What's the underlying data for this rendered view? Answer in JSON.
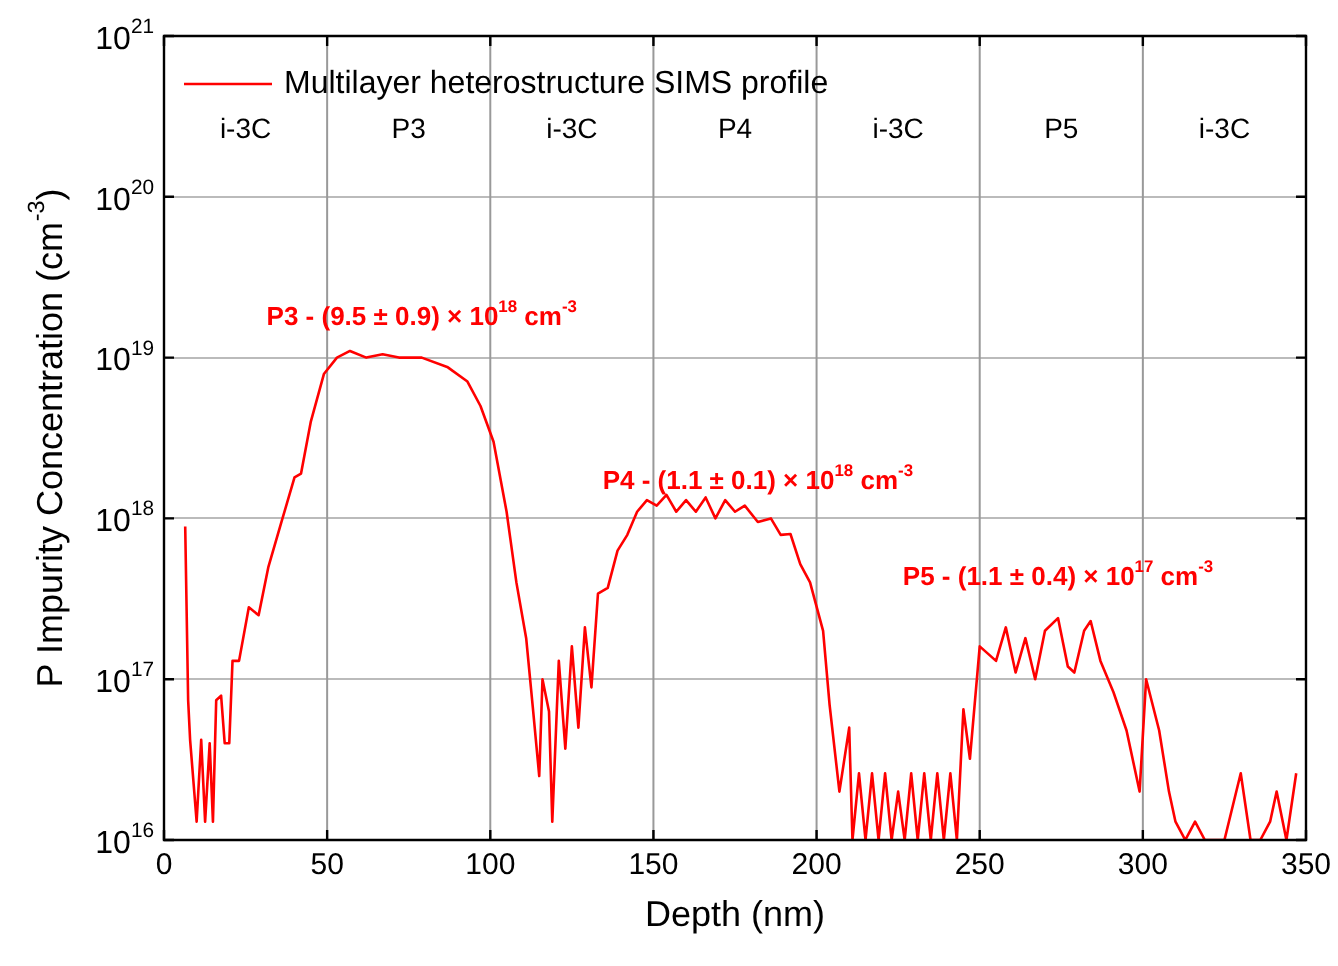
{
  "chart_data": {
    "type": "line",
    "xlabel": "Depth (nm)",
    "ylabel": "P Impurity Concentration (cm$^{-3}$)",
    "log": "y",
    "grid": "y",
    "legend": "top left",
    "marker": "none",
    "line_style": "solid",
    "xlim": [
      0,
      350
    ],
    "xticks": [
      0,
      50,
      100,
      150,
      200,
      250,
      300,
      350
    ],
    "ylim": [
      1e+16,
      1e+21
    ],
    "yticks": [
      {
        "value": 1e+16,
        "label": "10$^{16}$"
      },
      {
        "value": 1e+17,
        "label": "10$^{17}$"
      },
      {
        "value": 1e+18,
        "label": "10$^{18}$"
      },
      {
        "value": 1e+19,
        "label": "10$^{19}$"
      },
      {
        "value": 1e+20,
        "label": "10$^{20}$"
      },
      {
        "value": 1e+21,
        "label": "10$^{21}$"
      }
    ],
    "ref_lines": [
      {
        "axis": "x",
        "value": 50,
        "color": "#999999"
      },
      {
        "axis": "x",
        "value": 100,
        "color": "#999999"
      },
      {
        "axis": "x",
        "value": 150,
        "color": "#999999"
      },
      {
        "axis": "x",
        "value": 200,
        "color": "#999999"
      },
      {
        "axis": "x",
        "value": 250,
        "color": "#999999"
      },
      {
        "axis": "x",
        "value": 300,
        "color": "#999999"
      }
    ],
    "annotations": [
      "i-3C",
      "P3",
      "i-3C",
      "P4",
      "i-3C",
      "P5",
      "i-3C",
      {
        "text": "P3 - (9.5 ± 0.9) × 10$^{18}$ cm$^{-3}$",
        "x": 79,
        "y": 1e+19
      },
      {
        "text": "P4 - (1.1 ± 0.1) × 10$^{18}$ cm$^{-3}$",
        "x": 182,
        "y": 9.5e+17
      },
      {
        "text": "P5 - (1.1 ± 0.4) × 10$^{17}$ cm$^{-3}$",
        "x": 274,
        "y": 2.4e+17
      }
    ],
    "series": [
      {
        "name": "Multilayer heterostructure SIMS profile",
        "color": "#ff0000",
        "x": [
          6.5,
          7.4,
          8,
          10,
          11.4,
          12.6,
          14,
          15,
          16,
          17.5,
          18.6,
          20,
          21,
          23,
          26,
          29,
          32,
          36,
          40,
          42,
          45,
          49,
          53,
          57,
          62,
          67,
          72,
          79,
          87,
          93,
          97,
          101,
          105,
          108,
          111,
          113,
          115,
          116,
          118,
          119,
          121,
          123,
          125,
          127,
          129,
          131,
          133,
          136,
          139,
          142,
          145,
          148,
          151,
          154,
          157,
          160,
          163,
          166,
          169,
          172,
          175,
          178,
          182,
          186,
          189,
          192,
          195,
          198,
          202,
          204,
          207,
          210,
          211,
          213,
          215,
          217,
          219,
          221,
          223,
          225,
          227,
          229,
          231,
          233,
          235,
          237,
          239,
          241,
          243,
          245,
          247,
          250,
          255,
          258,
          261,
          264,
          267,
          270,
          274,
          277,
          279,
          282,
          284,
          287,
          291,
          295,
          299,
          301,
          305,
          308,
          310,
          313,
          316,
          319,
          322,
          325,
          330,
          333,
          336,
          339,
          341,
          344,
          347
        ],
        "values": [
          8.9e+17,
          7.4e+16,
          4.2e+16,
          1.3e+16,
          4.2e+16,
          1.3e+16,
          4e+16,
          1.3e+16,
          7.4e+16,
          7.9e+16,
          4e+16,
          4e+16,
          1.3e+17,
          1.3e+17,
          2.8e+17,
          2.5e+17,
          5e+17,
          9.5e+17,
          1.8e+18,
          1.9e+18,
          4e+18,
          7.9e+18,
          1e+19,
          1.1e+19,
          1e+19,
          1.05e+19,
          1e+19,
          1e+19,
          8.7e+18,
          7.1e+18,
          5e+18,
          3e+18,
          1.1e+18,
          4e+17,
          1.8e+17,
          6.8e+16,
          2.5e+16,
          1e+17,
          6.3e+16,
          1.3e+16,
          1.3e+17,
          3.7e+16,
          1.6e+17,
          5e+16,
          2.1e+17,
          8.9e+16,
          3.4e+17,
          3.7e+17,
          6.3e+17,
          7.9e+17,
          1.1e+18,
          1.3e+18,
          1.2e+18,
          1.4e+18,
          1.1e+18,
          1.3e+18,
          1.1e+18,
          1.35e+18,
          1e+18,
          1.3e+18,
          1.1e+18,
          1.2e+18,
          9.5e+17,
          1e+18,
          7.9e+17,
          8e+17,
          5.2e+17,
          4e+17,
          2e+17,
          6.9e+16,
          2e+16,
          5e+16,
          1e+16,
          2.6e+16,
          1e+16,
          2.6e+16,
          1e+16,
          2.6e+16,
          1e+16,
          2e+16,
          1e+16,
          2.6e+16,
          1e+16,
          2.6e+16,
          1e+16,
          2.6e+16,
          1e+16,
          2.6e+16,
          1e+16,
          6.5e+16,
          3.2e+16,
          1.6e+17,
          1.3e+17,
          2.1e+17,
          1.1e+17,
          1.8e+17,
          1e+17,
          2e+17,
          2.4e+17,
          1.2e+17,
          1.1e+17,
          2e+17,
          2.3e+17,
          1.3e+17,
          8.3e+16,
          4.8e+16,
          2e+16,
          1e+17,
          4.8e+16,
          2e+16,
          1.3e+16,
          1e+16,
          1.3e+16,
          1e+16,
          1e+16,
          1e+16,
          2.6e+16,
          1e+16,
          1e+16,
          1.3e+16,
          2e+16,
          1e+16,
          2.6e+16
        ]
      }
    ]
  }
}
